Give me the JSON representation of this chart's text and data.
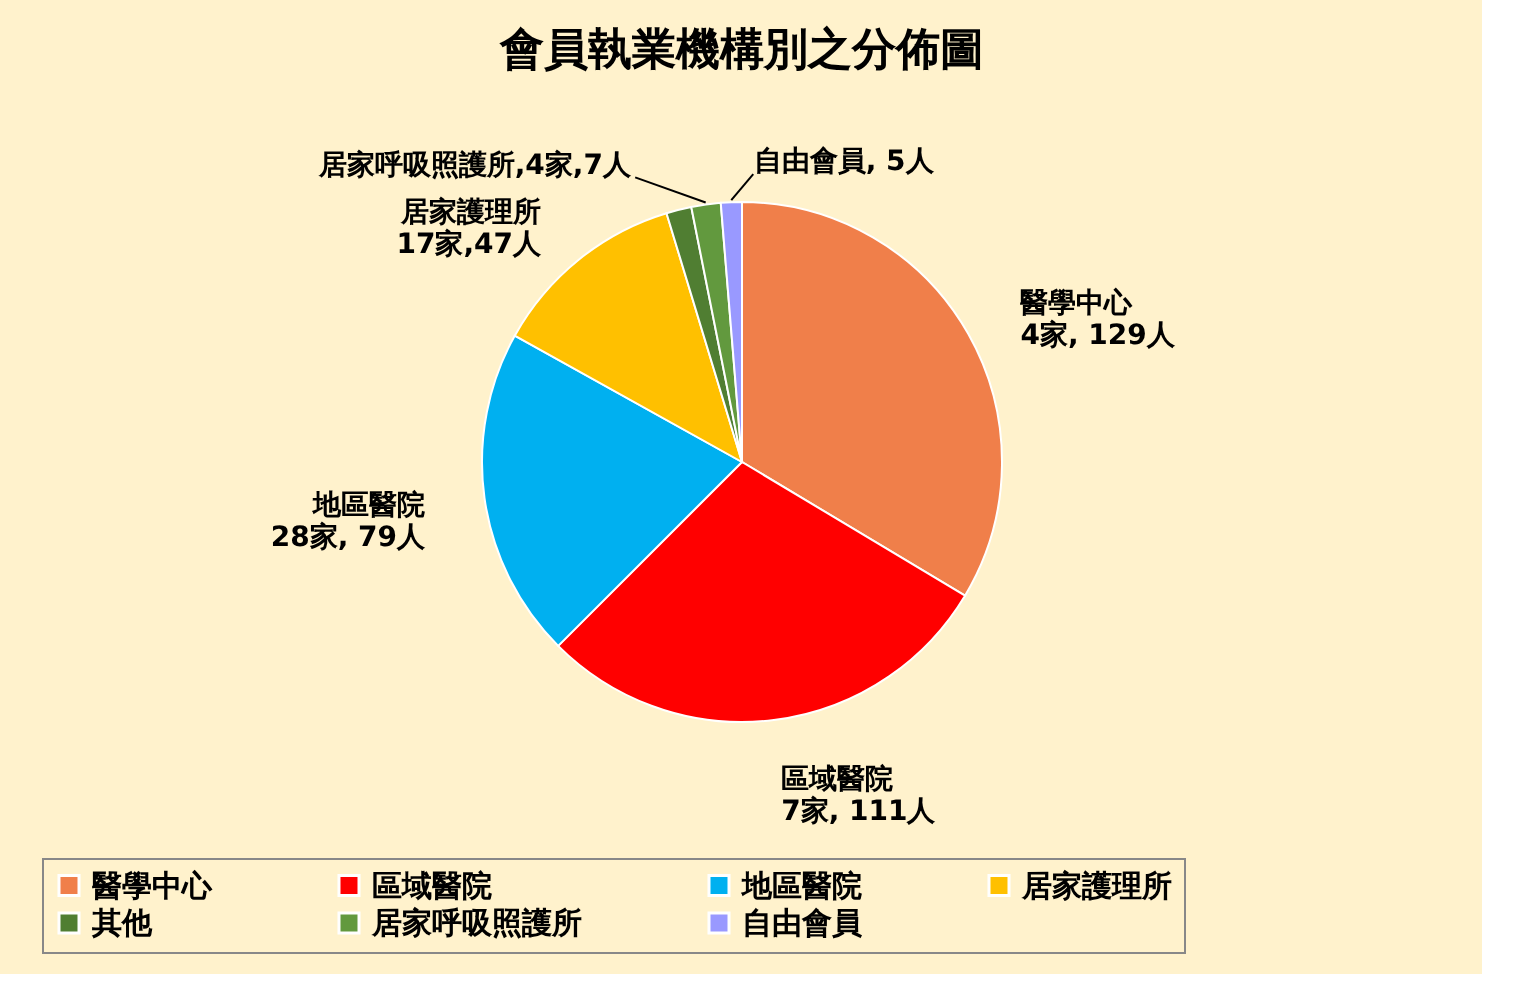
{
  "chart_data": {
    "type": "pie",
    "title": "會員執業機構別之分佈圖",
    "categories": [
      "醫學中心",
      "區域醫院",
      "地區醫院",
      "居家護理所",
      "其他",
      "居家呼吸照護所",
      "自由會員"
    ],
    "values": [
      129,
      111,
      79,
      47,
      6,
      7,
      5
    ],
    "colors": [
      "#f07f4a",
      "#ff0000",
      "#00b0f0",
      "#ffc000",
      "#507e32",
      "#62993e",
      "#9999ff"
    ],
    "value_labels": [
      "醫學中心\n4家, 129人",
      "區域醫院\n7家, 111人",
      "地區醫院\n28家, 79人",
      "居家護理所\n17家,47人",
      null,
      "居家呼吸照護所,4家,7人",
      "自由會員, 5人"
    ],
    "legend": "bottom"
  }
}
